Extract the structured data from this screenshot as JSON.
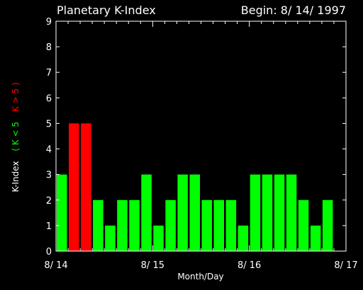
{
  "chart_data": {
    "type": "bar",
    "title": "Planetary K-Index",
    "begin_label": "Begin: 8/ 14/ 1997",
    "xlabel": "Month/Day",
    "ylabel_parts": [
      {
        "text": "K-Index",
        "color": "#ffffff"
      },
      {
        "text": "( K < 5",
        "color": "#00ff00"
      },
      {
        "text": "K > 5 )",
        "color": "#ff0000"
      }
    ],
    "ylim": [
      0,
      9
    ],
    "yticks": [
      "0",
      "1",
      "2",
      "3",
      "4",
      "5",
      "6",
      "7",
      "8",
      "9"
    ],
    "xticks": [
      "8/ 14",
      "8/ 15",
      "8/ 16",
      "8/ 17"
    ],
    "bars_per_day": 8,
    "values": [
      3,
      5,
      5,
      2,
      1,
      2,
      2,
      3,
      1,
      2,
      3,
      3,
      2,
      2,
      2,
      1,
      3,
      3,
      3,
      3,
      2,
      1,
      2
    ],
    "threshold": 5,
    "colors": {
      "low": "#00ff00",
      "high": "#ff0000",
      "axis": "#ffffff",
      "background": "#000000"
    }
  }
}
